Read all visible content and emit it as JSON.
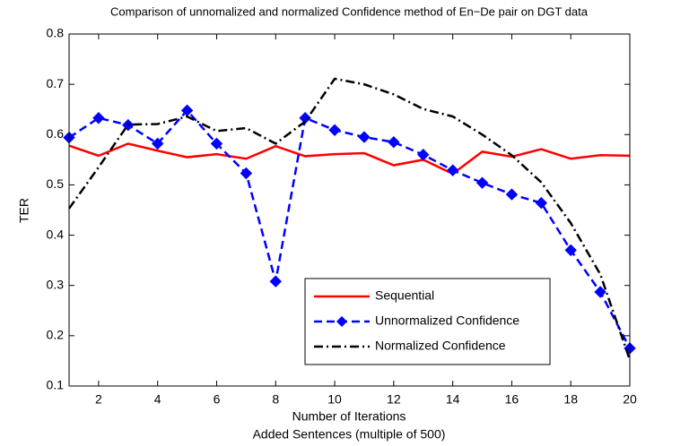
{
  "chart_data": {
    "type": "line",
    "title": "Comparison of unnomalized and normalized Confidence method of En−De pair on DGT data",
    "xlabel": [
      "Number of Iterations",
      "Added Sentences (multiple of 500)"
    ],
    "ylabel": "TER",
    "x": [
      1,
      2,
      3,
      4,
      5,
      6,
      7,
      8,
      9,
      10,
      11,
      12,
      13,
      14,
      15,
      16,
      17,
      18,
      19,
      20
    ],
    "xlim": [
      1,
      20
    ],
    "xticks": [
      2,
      4,
      6,
      8,
      10,
      12,
      14,
      16,
      18,
      20
    ],
    "ylim": [
      0.1,
      0.8
    ],
    "yticks": [
      0.1,
      0.2,
      0.3,
      0.4,
      0.5,
      0.6,
      0.7,
      0.8
    ],
    "grid": false,
    "legend": "lower right",
    "series": [
      {
        "name": "Sequential",
        "color": "#ff0000",
        "dash": "solid",
        "marker": "none",
        "values": [
          0.578,
          0.558,
          0.582,
          0.568,
          0.555,
          0.561,
          0.552,
          0.577,
          0.557,
          0.561,
          0.563,
          0.539,
          0.55,
          0.522,
          0.566,
          0.556,
          0.571,
          0.552,
          0.559,
          0.558
        ]
      },
      {
        "name": "Unnormalized Confidence",
        "color": "#0000ff",
        "dash": "dashed",
        "marker": "diamond",
        "values": [
          0.594,
          0.633,
          0.619,
          0.582,
          0.648,
          0.582,
          0.523,
          0.308,
          0.633,
          0.609,
          0.595,
          0.585,
          0.56,
          0.529,
          0.504,
          0.481,
          0.464,
          0.37,
          0.287,
          0.175
        ]
      },
      {
        "name": "Normalized Confidence",
        "color": "#000000",
        "dash": "dashdot",
        "marker": "none",
        "values": [
          0.453,
          0.535,
          0.62,
          0.621,
          0.636,
          0.607,
          0.613,
          0.582,
          0.626,
          0.711,
          0.7,
          0.68,
          0.651,
          0.636,
          0.6,
          0.559,
          0.505,
          0.424,
          0.322,
          0.152
        ]
      }
    ]
  }
}
